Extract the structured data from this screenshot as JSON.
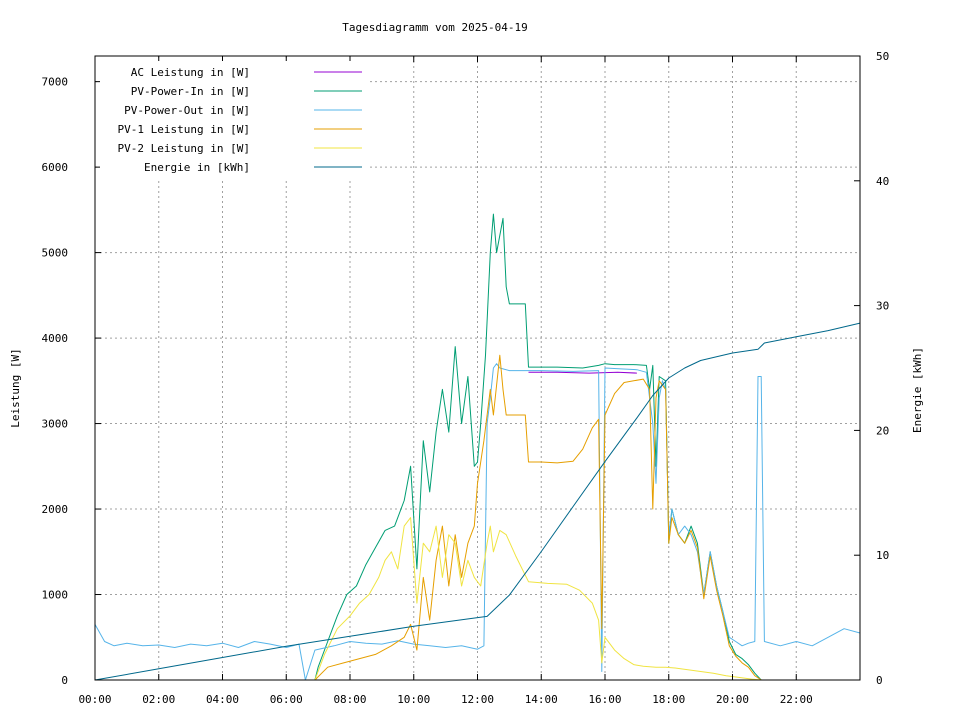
{
  "chart_data": {
    "type": "line",
    "title": "Tagesdiagramm vom 2025-04-19",
    "ylabel": "Leistung [W]",
    "y2label": "Energie [kWh]",
    "xlim_hours": [
      0,
      24
    ],
    "ylim": [
      0,
      7300
    ],
    "y2lim": [
      0,
      50
    ],
    "grid": true,
    "legend_position": "top-left",
    "x_ticks": [
      "00:00",
      "02:00",
      "04:00",
      "06:00",
      "08:00",
      "10:00",
      "12:00",
      "14:00",
      "16:00",
      "18:00",
      "20:00",
      "22:00"
    ],
    "y_ticks": [
      0,
      1000,
      2000,
      3000,
      4000,
      5000,
      6000,
      7000
    ],
    "y2_ticks": [
      0,
      10,
      20,
      30,
      40,
      50
    ],
    "series": [
      {
        "name": "AC Leistung in [W]",
        "axis": "y",
        "color": "#9400d3",
        "points": [
          [
            13.6,
            3600
          ],
          [
            14.5,
            3600
          ],
          [
            15.5,
            3590
          ],
          [
            16.4,
            3600
          ],
          [
            17.0,
            3590
          ]
        ]
      },
      {
        "name": "PV-Power-In in [W]",
        "axis": "y",
        "color": "#009e73",
        "points": [
          [
            6.9,
            0
          ],
          [
            7.0,
            150
          ],
          [
            7.3,
            450
          ],
          [
            7.6,
            750
          ],
          [
            7.9,
            1000
          ],
          [
            8.2,
            1100
          ],
          [
            8.5,
            1350
          ],
          [
            8.8,
            1550
          ],
          [
            9.1,
            1750
          ],
          [
            9.4,
            1800
          ],
          [
            9.7,
            2100
          ],
          [
            9.9,
            2500
          ],
          [
            10.1,
            1300
          ],
          [
            10.3,
            2800
          ],
          [
            10.5,
            2200
          ],
          [
            10.7,
            2900
          ],
          [
            10.9,
            3400
          ],
          [
            11.1,
            2900
          ],
          [
            11.3,
            3900
          ],
          [
            11.5,
            3000
          ],
          [
            11.7,
            3550
          ],
          [
            11.9,
            2500
          ],
          [
            12.0,
            2550
          ],
          [
            12.1,
            3000
          ],
          [
            12.25,
            3800
          ],
          [
            12.4,
            5000
          ],
          [
            12.5,
            5450
          ],
          [
            12.6,
            5000
          ],
          [
            12.8,
            5400
          ],
          [
            12.9,
            4600
          ],
          [
            13.0,
            4400
          ],
          [
            13.5,
            4400
          ],
          [
            13.6,
            3660
          ],
          [
            14.5,
            3660
          ],
          [
            15.3,
            3650
          ],
          [
            15.8,
            3680
          ],
          [
            16.0,
            3700
          ],
          [
            16.3,
            3690
          ],
          [
            16.9,
            3690
          ],
          [
            17.3,
            3680
          ],
          [
            17.4,
            3400
          ],
          [
            17.5,
            3680
          ],
          [
            17.6,
            2500
          ],
          [
            17.7,
            3550
          ],
          [
            17.9,
            3500
          ],
          [
            18.0,
            1600
          ],
          [
            18.1,
            2000
          ],
          [
            18.3,
            1700
          ],
          [
            18.5,
            1600
          ],
          [
            18.7,
            1800
          ],
          [
            18.9,
            1600
          ],
          [
            19.1,
            1000
          ],
          [
            19.3,
            1500
          ],
          [
            19.5,
            1100
          ],
          [
            19.7,
            800
          ],
          [
            19.9,
            450
          ],
          [
            20.1,
            300
          ],
          [
            20.3,
            250
          ],
          [
            20.5,
            180
          ],
          [
            20.7,
            80
          ],
          [
            20.9,
            0
          ]
        ]
      },
      {
        "name": "PV-Power-Out in [W]",
        "axis": "y",
        "color": "#56b4e9",
        "points": [
          [
            0.0,
            650
          ],
          [
            0.3,
            450
          ],
          [
            0.6,
            400
          ],
          [
            1.0,
            430
          ],
          [
            1.5,
            400
          ],
          [
            2.0,
            410
          ],
          [
            2.5,
            380
          ],
          [
            3.0,
            420
          ],
          [
            3.5,
            400
          ],
          [
            4.0,
            430
          ],
          [
            4.5,
            380
          ],
          [
            5.0,
            450
          ],
          [
            5.5,
            420
          ],
          [
            6.0,
            380
          ],
          [
            6.4,
            420
          ],
          [
            6.6,
            0
          ],
          [
            6.9,
            350
          ],
          [
            7.5,
            400
          ],
          [
            8.0,
            450
          ],
          [
            8.5,
            430
          ],
          [
            9.0,
            420
          ],
          [
            9.5,
            460
          ],
          [
            10.0,
            420
          ],
          [
            10.5,
            400
          ],
          [
            11.0,
            380
          ],
          [
            11.5,
            400
          ],
          [
            12.0,
            360
          ],
          [
            12.2,
            400
          ],
          [
            12.3,
            3000
          ],
          [
            12.4,
            3300
          ],
          [
            12.5,
            3650
          ],
          [
            12.6,
            3700
          ],
          [
            12.7,
            3650
          ],
          [
            13.0,
            3620
          ],
          [
            13.5,
            3620
          ],
          [
            14.0,
            3620
          ],
          [
            15.0,
            3610
          ],
          [
            15.8,
            3620
          ],
          [
            15.9,
            100
          ],
          [
            16.0,
            3650
          ],
          [
            16.5,
            3640
          ],
          [
            17.0,
            3630
          ],
          [
            17.3,
            3600
          ],
          [
            17.5,
            3000
          ],
          [
            17.6,
            2300
          ],
          [
            17.7,
            3300
          ],
          [
            17.8,
            3500
          ],
          [
            17.9,
            3400
          ],
          [
            18.0,
            1700
          ],
          [
            18.1,
            2000
          ],
          [
            18.3,
            1700
          ],
          [
            18.5,
            1800
          ],
          [
            18.7,
            1700
          ],
          [
            18.9,
            1500
          ],
          [
            19.1,
            1000
          ],
          [
            19.3,
            1500
          ],
          [
            19.5,
            1100
          ],
          [
            19.7,
            800
          ],
          [
            19.9,
            500
          ],
          [
            20.1,
            450
          ],
          [
            20.3,
            400
          ],
          [
            20.5,
            430
          ],
          [
            20.7,
            450
          ],
          [
            20.8,
            3550
          ],
          [
            20.9,
            3550
          ],
          [
            21.0,
            450
          ],
          [
            21.5,
            400
          ],
          [
            22.0,
            450
          ],
          [
            22.5,
            400
          ],
          [
            23.0,
            500
          ],
          [
            23.5,
            600
          ],
          [
            24.0,
            550
          ]
        ]
      },
      {
        "name": "PV-1 Leistung in [W]",
        "axis": "y",
        "color": "#e69f00",
        "points": [
          [
            6.9,
            0
          ],
          [
            7.3,
            150
          ],
          [
            7.8,
            200
          ],
          [
            8.3,
            250
          ],
          [
            8.8,
            300
          ],
          [
            9.3,
            400
          ],
          [
            9.7,
            500
          ],
          [
            9.9,
            650
          ],
          [
            10.1,
            350
          ],
          [
            10.3,
            1200
          ],
          [
            10.5,
            700
          ],
          [
            10.7,
            1400
          ],
          [
            10.9,
            1800
          ],
          [
            11.1,
            1100
          ],
          [
            11.3,
            1700
          ],
          [
            11.5,
            1200
          ],
          [
            11.7,
            1600
          ],
          [
            11.9,
            1800
          ],
          [
            12.0,
            2300
          ],
          [
            12.2,
            2800
          ],
          [
            12.4,
            3400
          ],
          [
            12.5,
            3100
          ],
          [
            12.7,
            3800
          ],
          [
            12.8,
            3400
          ],
          [
            12.9,
            3100
          ],
          [
            13.5,
            3100
          ],
          [
            13.6,
            2550
          ],
          [
            14.0,
            2550
          ],
          [
            14.5,
            2540
          ],
          [
            15.0,
            2560
          ],
          [
            15.3,
            2700
          ],
          [
            15.6,
            2950
          ],
          [
            15.8,
            3050
          ],
          [
            15.9,
            600
          ],
          [
            16.0,
            3100
          ],
          [
            16.3,
            3350
          ],
          [
            16.6,
            3480
          ],
          [
            16.9,
            3500
          ],
          [
            17.2,
            3520
          ],
          [
            17.4,
            3400
          ],
          [
            17.5,
            2000
          ],
          [
            17.6,
            3300
          ],
          [
            17.7,
            3500
          ],
          [
            17.9,
            3400
          ],
          [
            18.0,
            1600
          ],
          [
            18.1,
            1900
          ],
          [
            18.3,
            1700
          ],
          [
            18.5,
            1600
          ],
          [
            18.7,
            1750
          ],
          [
            18.9,
            1550
          ],
          [
            19.1,
            950
          ],
          [
            19.3,
            1450
          ],
          [
            19.5,
            1050
          ],
          [
            19.7,
            750
          ],
          [
            19.9,
            400
          ],
          [
            20.1,
            280
          ],
          [
            20.3,
            200
          ],
          [
            20.5,
            150
          ],
          [
            20.7,
            50
          ],
          [
            20.9,
            0
          ]
        ]
      },
      {
        "name": "PV-2 Leistung in [W]",
        "axis": "y",
        "color": "#f0e442",
        "points": [
          [
            6.9,
            0
          ],
          [
            7.2,
            300
          ],
          [
            7.6,
            600
          ],
          [
            8.0,
            750
          ],
          [
            8.3,
            900
          ],
          [
            8.6,
            1000
          ],
          [
            8.9,
            1200
          ],
          [
            9.1,
            1400
          ],
          [
            9.3,
            1500
          ],
          [
            9.5,
            1300
          ],
          [
            9.7,
            1800
          ],
          [
            9.9,
            1900
          ],
          [
            10.1,
            900
          ],
          [
            10.3,
            1600
          ],
          [
            10.5,
            1500
          ],
          [
            10.7,
            1800
          ],
          [
            10.9,
            1200
          ],
          [
            11.1,
            1700
          ],
          [
            11.3,
            1600
          ],
          [
            11.5,
            1100
          ],
          [
            11.7,
            1400
          ],
          [
            11.9,
            1200
          ],
          [
            12.1,
            1100
          ],
          [
            12.3,
            1600
          ],
          [
            12.4,
            1800
          ],
          [
            12.5,
            1500
          ],
          [
            12.7,
            1750
          ],
          [
            12.9,
            1700
          ],
          [
            13.2,
            1450
          ],
          [
            13.6,
            1150
          ],
          [
            14.2,
            1130
          ],
          [
            14.8,
            1120
          ],
          [
            15.2,
            1050
          ],
          [
            15.6,
            900
          ],
          [
            15.8,
            700
          ],
          [
            15.9,
            200
          ],
          [
            16.0,
            500
          ],
          [
            16.3,
            350
          ],
          [
            16.6,
            250
          ],
          [
            16.9,
            180
          ],
          [
            17.2,
            160
          ],
          [
            17.6,
            150
          ],
          [
            17.9,
            150
          ],
          [
            18.2,
            140
          ],
          [
            18.6,
            120
          ],
          [
            19.0,
            100
          ],
          [
            19.4,
            80
          ],
          [
            19.8,
            50
          ],
          [
            20.2,
            30
          ],
          [
            20.6,
            10
          ],
          [
            20.9,
            0
          ]
        ]
      },
      {
        "name": "Energie in [kWh]",
        "axis": "y2",
        "color": "#00688b",
        "points": [
          [
            0.0,
            0
          ],
          [
            2.0,
            0.9
          ],
          [
            4.0,
            1.8
          ],
          [
            6.0,
            2.7
          ],
          [
            8.0,
            3.5
          ],
          [
            10.0,
            4.3
          ],
          [
            12.0,
            5.0
          ],
          [
            12.3,
            5.1
          ],
          [
            13.0,
            6.8
          ],
          [
            14.0,
            10.3
          ],
          [
            15.0,
            13.9
          ],
          [
            16.0,
            17.5
          ],
          [
            17.0,
            21.0
          ],
          [
            17.5,
            22.8
          ],
          [
            18.0,
            24.2
          ],
          [
            18.5,
            25.0
          ],
          [
            19.0,
            25.6
          ],
          [
            20.0,
            26.2
          ],
          [
            20.8,
            26.5
          ],
          [
            21.0,
            27.0
          ],
          [
            22.0,
            27.5
          ],
          [
            23.0,
            28.0
          ],
          [
            24.0,
            28.6
          ]
        ]
      }
    ]
  }
}
